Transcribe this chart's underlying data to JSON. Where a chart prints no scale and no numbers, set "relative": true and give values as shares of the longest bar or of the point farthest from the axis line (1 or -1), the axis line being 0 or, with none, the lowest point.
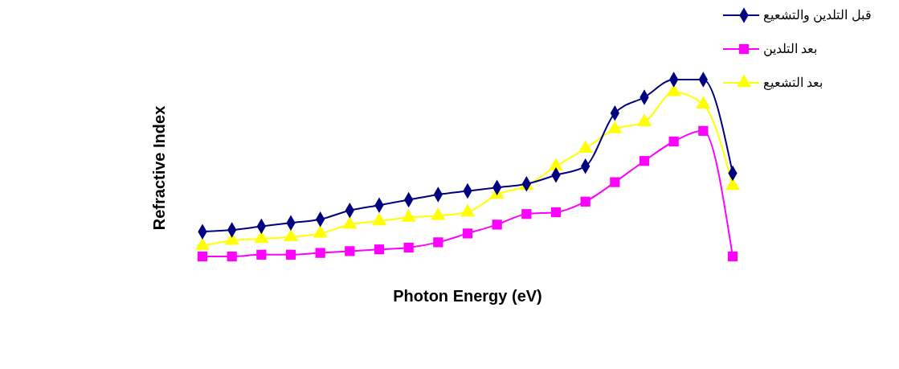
{
  "chart_data": {
    "type": "line",
    "relative": true,
    "xlabel": "Photon Energy (eV)",
    "ylabel": "Refractive Index",
    "legend": "top right",
    "line_style": "solid",
    "categories": [
      null,
      null,
      null,
      null,
      null,
      null,
      null,
      null,
      null,
      null,
      null,
      null,
      null,
      null,
      null,
      null,
      null,
      null,
      null
    ],
    "series": [
      {
        "name": "قبل التلدين والتشعيع",
        "color": "#000080",
        "marker": "diamond",
        "values": [
          0.14,
          0.15,
          0.17,
          0.19,
          0.21,
          0.26,
          0.29,
          0.32,
          0.35,
          0.37,
          0.39,
          0.41,
          0.46,
          0.51,
          0.81,
          0.9,
          1.0,
          1.0,
          0.47
        ]
      },
      {
        "name": "بعد التلدين",
        "color": "#ff00ff",
        "marker": "square",
        "values": [
          0,
          0,
          0.01,
          0.01,
          0.02,
          0.03,
          0.04,
          0.05,
          0.08,
          0.13,
          0.18,
          0.24,
          0.25,
          0.31,
          0.42,
          0.54,
          0.65,
          0.71,
          0
        ]
      },
      {
        "name": "بعد التشعيع",
        "color": "#ffff00",
        "marker": "triangle",
        "values": [
          0.06,
          0.09,
          0.1,
          0.11,
          0.13,
          0.18,
          0.2,
          0.22,
          0.23,
          0.25,
          0.35,
          0.4,
          0.51,
          0.61,
          0.72,
          0.76,
          0.93,
          0.86,
          0.4
        ]
      }
    ]
  }
}
